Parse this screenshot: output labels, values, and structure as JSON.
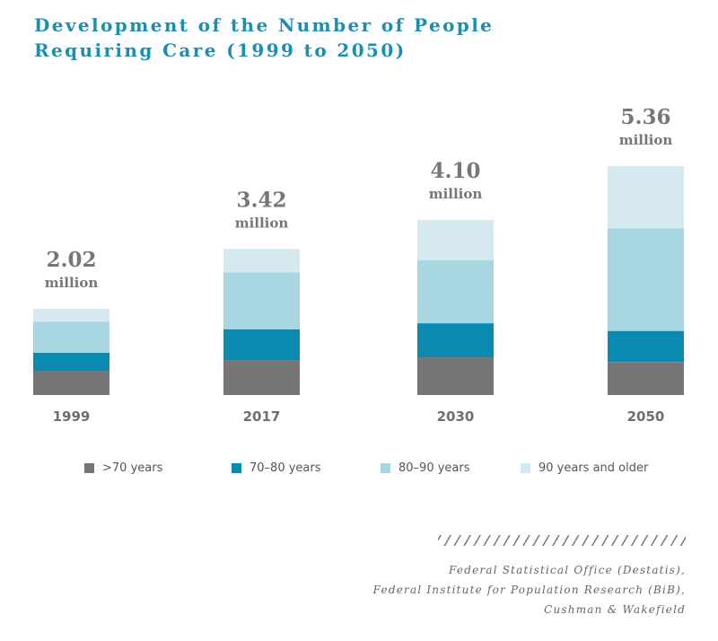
{
  "title_lines": [
    "Development of the Number of People",
    "Requiring Care (1999 to 2050)"
  ],
  "chart_data": {
    "type": "bar",
    "stacked": true,
    "categories": [
      "1999",
      "2017",
      "2030",
      "2050"
    ],
    "totals": [
      "2.02",
      "3.42",
      "4.10",
      "5.36"
    ],
    "total_unit": "million",
    "series": [
      {
        "name": ">70 years",
        "color": "#757575",
        "values": [
          0.55,
          0.81,
          0.88,
          0.77
        ]
      },
      {
        "name": "70–80 years",
        "color": "#0a8ab0",
        "values": [
          0.44,
          0.73,
          0.8,
          0.73
        ]
      },
      {
        "name": "80–90 years",
        "color": "#a8d6e1",
        "values": [
          0.73,
          1.33,
          1.48,
          2.4
        ]
      },
      {
        "name": "90 years and older",
        "color": "#d5e9ef",
        "values": [
          0.3,
          0.55,
          0.94,
          1.46
        ]
      }
    ],
    "ylim": [
      0,
      5.36
    ],
    "grid": false,
    "legend_position": "bottom"
  },
  "source_lines": [
    "Federal Statistical Office (Destatis),",
    "Federal Institute for Population Research (BiB),",
    "Cushman & Wakefield"
  ]
}
